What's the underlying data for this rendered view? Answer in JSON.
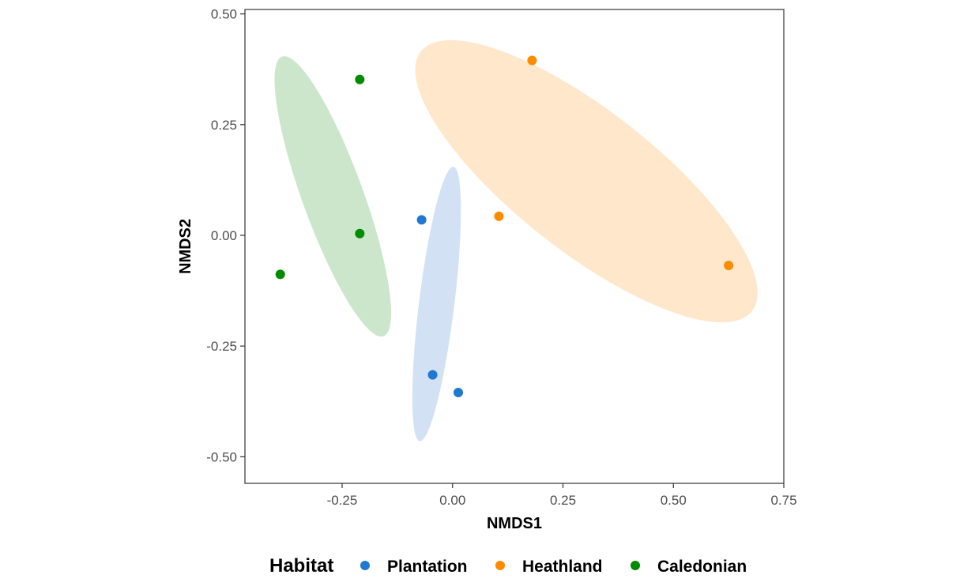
{
  "chart_data": {
    "type": "scatter",
    "xlabel": "NMDS1",
    "ylabel": "NMDS2",
    "xlim": [
      -0.47,
      0.75
    ],
    "ylim": [
      -0.56,
      0.51
    ],
    "x_ticks": [
      -0.25,
      0.0,
      0.25,
      0.5,
      0.75
    ],
    "x_tick_labels": [
      "-0.25",
      "0.00",
      "0.25",
      "0.50",
      "0.75"
    ],
    "y_ticks": [
      -0.5,
      -0.25,
      0.0,
      0.25,
      0.5
    ],
    "y_tick_labels": [
      "-0.50",
      "-0.25",
      "0.00",
      "0.25",
      "0.50"
    ],
    "grid": false,
    "legend": {
      "title": "Habitat",
      "position": "bottom"
    },
    "series": [
      {
        "name": "Plantation",
        "color": "#1f78d1",
        "ellipse_color": "#d2e1f4",
        "points": [
          {
            "x": -0.07,
            "y": 0.035
          },
          {
            "x": -0.045,
            "y": -0.315
          },
          {
            "x": 0.013,
            "y": -0.355
          }
        ],
        "ellipse": {
          "cx": -0.036,
          "cy": -0.155,
          "rx": 0.04,
          "ry": 0.312,
          "angle_deg": -7
        }
      },
      {
        "name": "Heathland",
        "color": "#ff8c00",
        "ellipse_color": "#ffe7cc",
        "points": [
          {
            "x": 0.18,
            "y": 0.395
          },
          {
            "x": 0.105,
            "y": 0.043
          },
          {
            "x": 0.625,
            "y": -0.068
          }
        ],
        "ellipse": {
          "cx": 0.303,
          "cy": 0.122,
          "rx": 0.476,
          "ry": 0.159,
          "angle_deg": -38
        }
      },
      {
        "name": "Caledonian",
        "color": "#008b00",
        "ellipse_color": "#cce6cc",
        "points": [
          {
            "x": -0.21,
            "y": 0.352
          },
          {
            "x": -0.21,
            "y": 0.004
          },
          {
            "x": -0.39,
            "y": -0.088
          }
        ],
        "ellipse": {
          "cx": -0.271,
          "cy": 0.088,
          "rx": 0.069,
          "ry": 0.336,
          "angle_deg": 20
        }
      }
    ]
  }
}
